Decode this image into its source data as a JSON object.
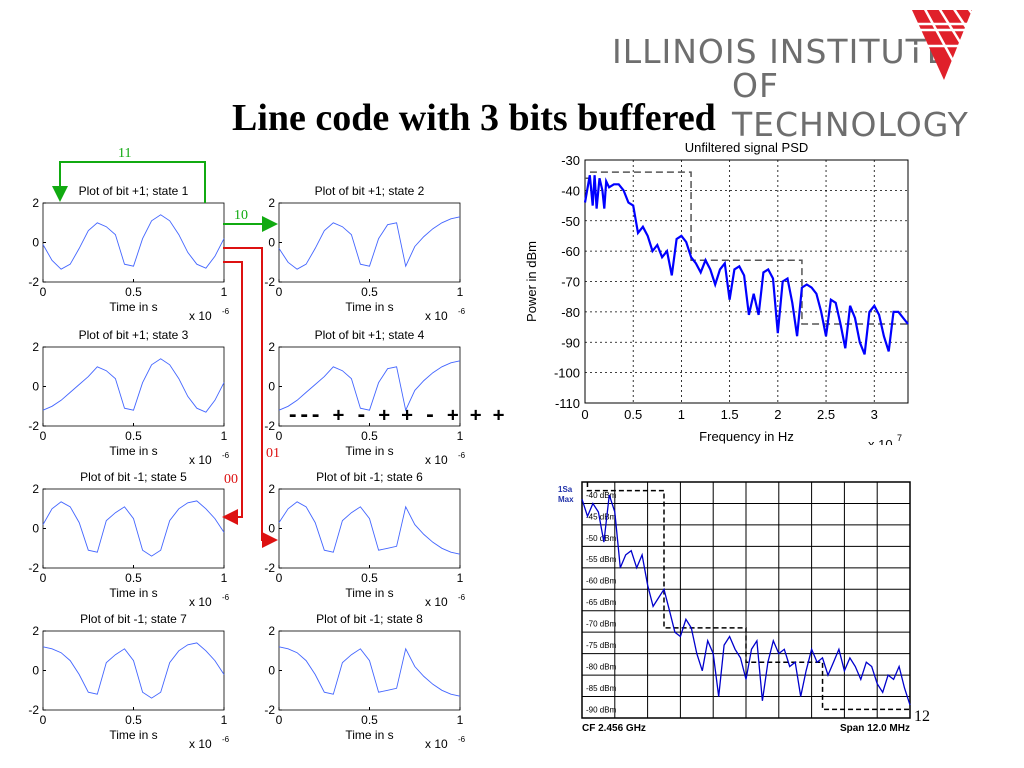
{
  "logo": {
    "line1": "ILLINOIS INSTITUTE",
    "line2": "OF TECHNOLOGY",
    "color": "#e0202a"
  },
  "title": "Line code with 3 bits buffered",
  "page_number": "12",
  "arrows": [
    {
      "label": "11",
      "color": "#11aa11"
    },
    {
      "label": "10",
      "color": "#11aa11"
    },
    {
      "label": "01",
      "color": "#dd1111"
    },
    {
      "label": "00",
      "color": "#dd1111"
    }
  ],
  "state4_pattern": "--- + - + + - + + +",
  "subplot_axis": {
    "xlabel": "Time in s",
    "x_mult": "x 10",
    "x_exp": "-6",
    "xticks": [
      "0",
      "0.5",
      "1"
    ],
    "yticks": [
      "2",
      "0",
      "-2"
    ]
  },
  "chart_data": [
    {
      "type": "line",
      "title": "Plot of bit +1; state 1",
      "xlabel": "Time in s",
      "xlim": [
        0,
        1e-06
      ],
      "ylim": [
        -2,
        2
      ],
      "series": [
        {
          "x": [
            0,
            0.05,
            0.1,
            0.15,
            0.2,
            0.25,
            0.3,
            0.35,
            0.4,
            0.45,
            0.5,
            0.55,
            0.6,
            0.65,
            0.7,
            0.75,
            0.8,
            0.85,
            0.9,
            0.95,
            1.0
          ],
          "values": [
            -0.1,
            -0.9,
            -1.35,
            -1.1,
            -0.3,
            0.6,
            1.0,
            0.8,
            0.4,
            -1.1,
            -1.2,
            0.2,
            1.1,
            1.4,
            1.1,
            0.4,
            -0.5,
            -1.1,
            -1.3,
            -0.7,
            0.2
          ]
        }
      ]
    },
    {
      "type": "line",
      "title": "Plot of bit +1; state 2",
      "xlabel": "Time in s",
      "xlim": [
        0,
        1e-06
      ],
      "ylim": [
        -2,
        2
      ],
      "series": [
        {
          "x": [
            0,
            0.05,
            0.1,
            0.15,
            0.2,
            0.25,
            0.3,
            0.35,
            0.4,
            0.45,
            0.5,
            0.55,
            0.6,
            0.65,
            0.7,
            0.75,
            0.8,
            0.85,
            0.9,
            0.95,
            1.0
          ],
          "values": [
            -0.3,
            -1.0,
            -1.35,
            -1.1,
            -0.3,
            0.6,
            1.0,
            0.8,
            0.4,
            -1.1,
            -1.2,
            0.2,
            0.9,
            1.0,
            -1.2,
            -0.2,
            0.3,
            0.7,
            1.0,
            1.2,
            1.3
          ]
        }
      ]
    },
    {
      "type": "line",
      "title": "Plot of bit +1; state 3",
      "xlabel": "Time in s",
      "xlim": [
        0,
        1e-06
      ],
      "ylim": [
        -2,
        2
      ],
      "series": [
        {
          "x": [
            0,
            0.05,
            0.1,
            0.15,
            0.2,
            0.25,
            0.3,
            0.35,
            0.4,
            0.45,
            0.5,
            0.55,
            0.6,
            0.65,
            0.7,
            0.75,
            0.8,
            0.85,
            0.9,
            0.95,
            1.0
          ],
          "values": [
            -1.2,
            -1.0,
            -0.7,
            -0.3,
            0.1,
            0.5,
            1.0,
            0.8,
            0.4,
            -1.1,
            -1.2,
            0.2,
            1.1,
            1.4,
            1.1,
            0.4,
            -0.5,
            -1.1,
            -1.3,
            -0.7,
            0.2
          ]
        }
      ]
    },
    {
      "type": "line",
      "title": "Plot of bit +1; state 4",
      "xlabel": "Time in s",
      "xlim": [
        0,
        1e-06
      ],
      "ylim": [
        -2,
        2
      ],
      "series": [
        {
          "x": [
            0,
            0.05,
            0.1,
            0.15,
            0.2,
            0.25,
            0.3,
            0.35,
            0.4,
            0.45,
            0.5,
            0.55,
            0.6,
            0.65,
            0.7,
            0.75,
            0.8,
            0.85,
            0.9,
            0.95,
            1.0
          ],
          "values": [
            -1.2,
            -1.0,
            -0.7,
            -0.3,
            0.1,
            0.5,
            1.0,
            0.8,
            0.4,
            -1.1,
            -1.2,
            0.2,
            0.9,
            1.0,
            -1.2,
            -0.2,
            0.3,
            0.7,
            1.0,
            1.2,
            1.3
          ]
        }
      ]
    },
    {
      "type": "line",
      "title": "Plot of bit -1; state 5",
      "xlabel": "Time in s",
      "xlim": [
        0,
        1e-06
      ],
      "ylim": [
        -2,
        2
      ],
      "series": [
        {
          "x": [
            0,
            0.05,
            0.1,
            0.15,
            0.2,
            0.25,
            0.3,
            0.35,
            0.4,
            0.45,
            0.5,
            0.55,
            0.6,
            0.65,
            0.7,
            0.75,
            0.8,
            0.85,
            0.9,
            0.95,
            1.0
          ],
          "values": [
            0.2,
            1.0,
            1.35,
            1.1,
            0.3,
            -1.1,
            -1.2,
            0.4,
            0.8,
            1.1,
            0.5,
            -1.1,
            -1.4,
            -1.1,
            0.4,
            1.0,
            1.3,
            1.4,
            1.0,
            0.5,
            -0.2
          ]
        }
      ]
    },
    {
      "type": "line",
      "title": "Plot of bit -1; state 6",
      "xlabel": "Time in s",
      "xlim": [
        0,
        1e-06
      ],
      "ylim": [
        -2,
        2
      ],
      "series": [
        {
          "x": [
            0,
            0.05,
            0.1,
            0.15,
            0.2,
            0.25,
            0.3,
            0.35,
            0.4,
            0.45,
            0.5,
            0.55,
            0.6,
            0.65,
            0.7,
            0.75,
            0.8,
            0.85,
            0.9,
            0.95,
            1.0
          ],
          "values": [
            0.3,
            1.0,
            1.35,
            1.1,
            0.3,
            -1.1,
            -1.2,
            0.4,
            0.8,
            1.1,
            0.5,
            -1.1,
            -1.0,
            -0.9,
            1.1,
            0.2,
            -0.3,
            -0.7,
            -1.0,
            -1.2,
            -1.3
          ]
        }
      ]
    },
    {
      "type": "line",
      "title": "Plot of bit -1; state 7",
      "xlabel": "Time in s",
      "xlim": [
        0,
        1e-06
      ],
      "ylim": [
        -2,
        2
      ],
      "series": [
        {
          "x": [
            0,
            0.05,
            0.1,
            0.15,
            0.2,
            0.25,
            0.3,
            0.35,
            0.4,
            0.45,
            0.5,
            0.55,
            0.6,
            0.65,
            0.7,
            0.75,
            0.8,
            0.85,
            0.9,
            0.95,
            1.0
          ],
          "values": [
            1.2,
            1.1,
            0.9,
            0.5,
            -0.2,
            -1.1,
            -1.2,
            0.4,
            0.8,
            1.1,
            0.5,
            -1.1,
            -1.4,
            -1.1,
            0.4,
            1.0,
            1.3,
            1.4,
            1.0,
            0.5,
            -0.2
          ]
        }
      ]
    },
    {
      "type": "line",
      "title": "Plot of bit -1; state 8",
      "xlabel": "Time in s",
      "xlim": [
        0,
        1e-06
      ],
      "ylim": [
        -2,
        2
      ],
      "series": [
        {
          "x": [
            0,
            0.05,
            0.1,
            0.15,
            0.2,
            0.25,
            0.3,
            0.35,
            0.4,
            0.45,
            0.5,
            0.55,
            0.6,
            0.65,
            0.7,
            0.75,
            0.8,
            0.85,
            0.9,
            0.95,
            1.0
          ],
          "values": [
            1.2,
            1.1,
            0.9,
            0.5,
            -0.2,
            -1.1,
            -1.2,
            0.4,
            0.8,
            1.1,
            0.5,
            -1.1,
            -1.0,
            -0.9,
            1.1,
            0.2,
            -0.3,
            -0.7,
            -1.0,
            -1.2,
            -1.3
          ]
        }
      ]
    },
    {
      "type": "line",
      "title": "Unfiltered signal PSD",
      "xlabel": "Frequency in Hz",
      "ylabel": "Power in dBm",
      "x_multiplier": "x 10",
      "x_exp": "7",
      "xlim": [
        0,
        3.35
      ],
      "ylim": [
        -110,
        -30
      ],
      "xticks": [
        "0",
        "0.5",
        "1",
        "1.5",
        "2",
        "2.5",
        "3"
      ],
      "yticks": [
        "-30",
        "-40",
        "-50",
        "-60",
        "-70",
        "-80",
        "-90",
        "-100",
        "-110"
      ],
      "grid": true,
      "series": [
        {
          "color": "#0000ff",
          "x": [
            0,
            0.05,
            0.08,
            0.1,
            0.12,
            0.15,
            0.18,
            0.2,
            0.22,
            0.25,
            0.3,
            0.35,
            0.4,
            0.45,
            0.5,
            0.55,
            0.6,
            0.65,
            0.7,
            0.75,
            0.8,
            0.85,
            0.9,
            0.95,
            1.0,
            1.05,
            1.1,
            1.15,
            1.2,
            1.25,
            1.3,
            1.35,
            1.4,
            1.45,
            1.5,
            1.55,
            1.6,
            1.65,
            1.7,
            1.75,
            1.8,
            1.85,
            1.9,
            1.95,
            2.0,
            2.05,
            2.1,
            2.15,
            2.2,
            2.25,
            2.3,
            2.35,
            2.4,
            2.45,
            2.5,
            2.55,
            2.6,
            2.65,
            2.7,
            2.75,
            2.8,
            2.85,
            2.9,
            2.95,
            3.0,
            3.05,
            3.1,
            3.15,
            3.2,
            3.25,
            3.3,
            3.35
          ],
          "values": [
            -44,
            -35,
            -45,
            -35,
            -46,
            -36,
            -40,
            -46,
            -37,
            -39,
            -38,
            -38,
            -40,
            -44,
            -45,
            -54,
            -52,
            -55,
            -60,
            -58,
            -62,
            -60,
            -68,
            -56,
            -55,
            -57,
            -62,
            -64,
            -67,
            -63,
            -66,
            -71,
            -66,
            -64,
            -76,
            -66,
            -65,
            -68,
            -81,
            -74,
            -81,
            -67,
            -66,
            -69,
            -87,
            -70,
            -69,
            -77,
            -88,
            -72,
            -71,
            -72,
            -74,
            -80,
            -88,
            -76,
            -77,
            -84,
            -92,
            -78,
            -82,
            -90,
            -94,
            -80,
            -78,
            -81,
            -88,
            -93,
            -80,
            -80,
            -82,
            -84
          ]
        }
      ],
      "mask": {
        "x": [
          0,
          0.05,
          0.05,
          1.1,
          1.1,
          2.25,
          2.25,
          3.35
        ],
        "values": [
          -36,
          -36,
          -34,
          -34,
          -63,
          -63,
          -84,
          -84
        ]
      }
    },
    {
      "type": "line",
      "title": "",
      "annotations": {
        "top_left_1": "1Sa",
        "top_left_2": "Max",
        "bottom_left": "CF 2.456 GHz",
        "bottom_right": "Span 12.0 MHz"
      },
      "ylabels": [
        "-40 dBm",
        "-45 dBm",
        "-50 dBm",
        "-55 dBm",
        "-60 dBm",
        "-65 dBm",
        "-70 dBm",
        "-75 dBm",
        "-80 dBm",
        "-85 dBm",
        "-90 dBm"
      ],
      "xlim": [
        0,
        12
      ],
      "ylim": [
        -92,
        -37
      ],
      "series": [
        {
          "color": "#0000cc",
          "x": [
            0,
            0.2,
            0.4,
            0.6,
            0.8,
            1.0,
            1.2,
            1.4,
            1.6,
            1.8,
            2.0,
            2.2,
            2.4,
            2.6,
            2.8,
            3.0,
            3.2,
            3.4,
            3.6,
            3.8,
            4.0,
            4.2,
            4.4,
            4.6,
            4.8,
            5.0,
            5.2,
            5.4,
            5.6,
            5.8,
            6.0,
            6.2,
            6.4,
            6.6,
            6.8,
            7.0,
            7.2,
            7.4,
            7.6,
            7.8,
            8.0,
            8.2,
            8.4,
            8.6,
            8.8,
            9.0,
            9.2,
            9.4,
            9.6,
            9.8,
            10.0,
            10.2,
            10.4,
            10.6,
            10.8,
            11.0,
            11.2,
            11.4,
            11.6,
            11.8,
            12.0
          ],
          "values": [
            -41,
            -45,
            -42,
            -44,
            -51,
            -40,
            -44,
            -57,
            -54,
            -53,
            -57,
            -54,
            -61,
            -66,
            -64,
            -62,
            -67,
            -72,
            -73,
            -69,
            -71,
            -77,
            -81,
            -74,
            -77,
            -87,
            -75,
            -73,
            -76,
            -78,
            -83,
            -76,
            -74,
            -88,
            -79,
            -74,
            -77,
            -76,
            -80,
            -79,
            -87,
            -81,
            -76,
            -79,
            -78,
            -82,
            -79,
            -76,
            -81,
            -78,
            -80,
            -83,
            -79,
            -80,
            -84,
            -86,
            -82,
            -83,
            -80,
            -85,
            -89
          ]
        }
      ],
      "mask": {
        "x": [
          0.2,
          0.2,
          3.0,
          3.0,
          6.0,
          6.0,
          8.8,
          8.8,
          12.0
        ],
        "values": [
          -37,
          -39,
          -39,
          -71,
          -71,
          -79,
          -79,
          -90,
          -90
        ]
      }
    }
  ]
}
